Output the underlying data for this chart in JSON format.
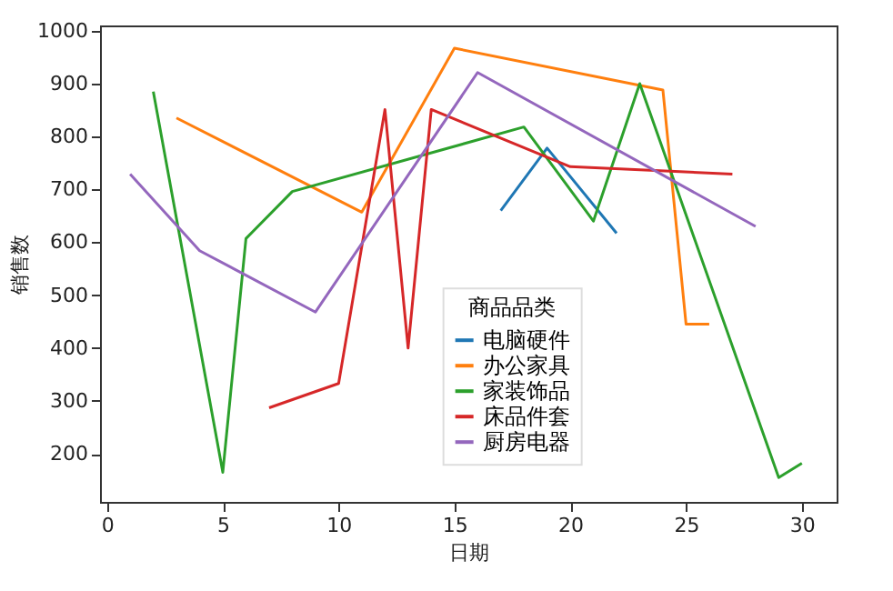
{
  "chart_data": {
    "type": "line",
    "xlabel": "日期",
    "ylabel": "销售数",
    "legend_title": "商品品类",
    "legend": "bottom",
    "grid": false,
    "marker": "none",
    "line_style": "solid",
    "xlim": [
      -0.3,
      31.5
    ],
    "ylim": [
      109,
      1010
    ],
    "xticks": [
      0,
      5,
      10,
      15,
      20,
      25,
      30
    ],
    "yticks": [
      200,
      300,
      400,
      500,
      600,
      700,
      800,
      900,
      1000
    ],
    "series": [
      {
        "name": "电脑硬件",
        "color": "#1f77b4",
        "x": [
          17,
          19,
          22
        ],
        "values": [
          660,
          778,
          617
        ]
      },
      {
        "name": "办公家具",
        "color": "#ff7f0e",
        "x": [
          3,
          11,
          15,
          24,
          25,
          26
        ],
        "values": [
          835,
          657,
          967,
          888,
          445,
          445
        ]
      },
      {
        "name": "家装饰品",
        "color": "#2ca02c",
        "x": [
          2,
          5,
          6,
          8,
          18,
          21,
          23,
          29,
          30
        ],
        "values": [
          885,
          165,
          607,
          696,
          818,
          640,
          900,
          155,
          182
        ]
      },
      {
        "name": "床品件套",
        "color": "#d62728",
        "x": [
          7,
          10,
          12,
          13,
          14,
          20,
          27
        ],
        "values": [
          287,
          333,
          851,
          400,
          851,
          743,
          729
        ]
      },
      {
        "name": "厨房电器",
        "color": "#9467bd",
        "x": [
          1,
          4,
          9,
          16,
          28
        ],
        "values": [
          729,
          584,
          468,
          921,
          630
        ]
      }
    ]
  }
}
